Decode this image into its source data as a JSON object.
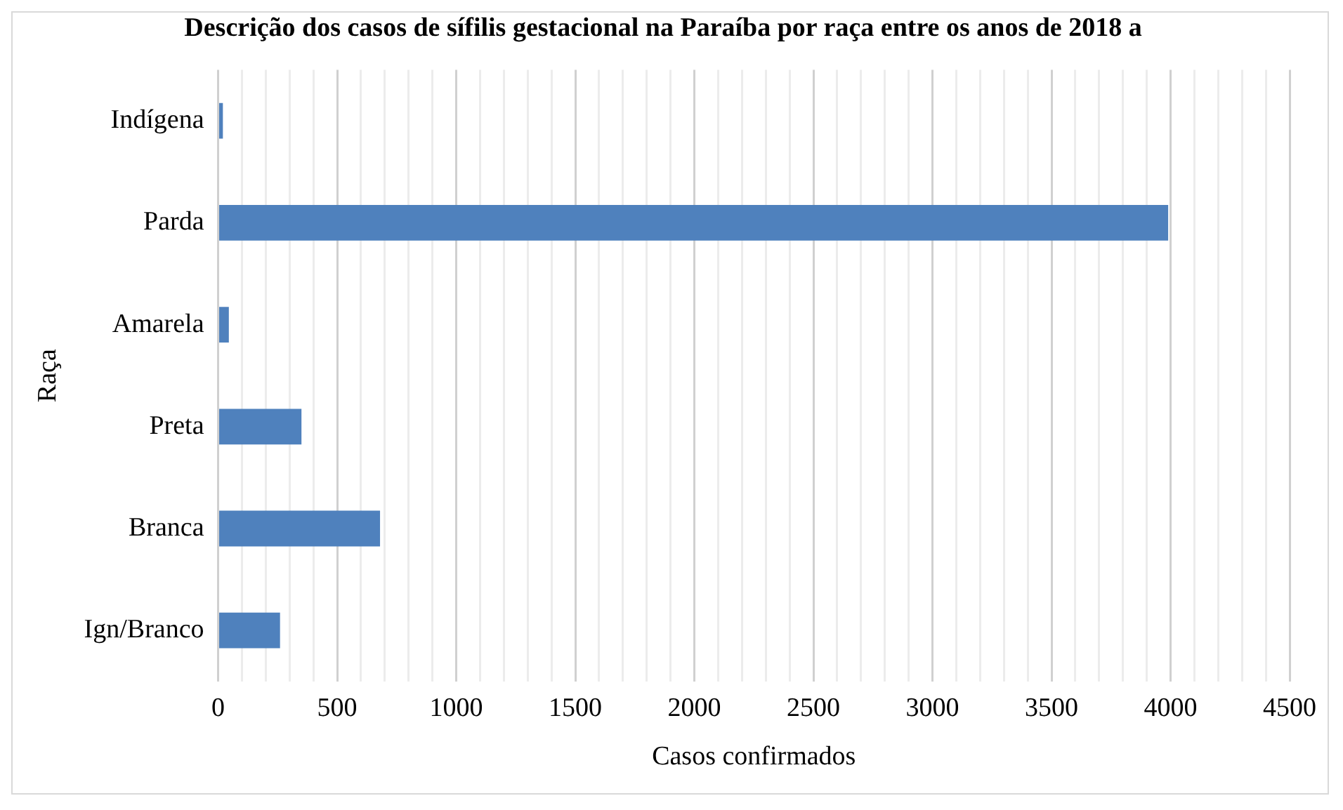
{
  "chart_data": {
    "type": "bar",
    "orientation": "horizontal",
    "title": "Descrição dos casos de sífilis gestacional na Paraíba por raça entre os anos de 2018 a",
    "xlabel": "Casos confirmados",
    "ylabel": "Raça",
    "categories": [
      "Indígena",
      "Parda",
      "Amarela",
      "Preta",
      "Branca",
      "Ign/Branco"
    ],
    "values": [
      20,
      3990,
      45,
      350,
      680,
      260
    ],
    "color": "#4f81bd",
    "xlim": [
      0,
      4500
    ],
    "xticks": [
      0,
      {
        "value": 100,
        "label": null
      },
      {
        "value": 200,
        "label": null
      },
      {
        "value": 300,
        "label": null
      },
      {
        "value": 400,
        "label": null
      },
      500,
      {
        "value": 600,
        "label": null
      },
      {
        "value": 700,
        "label": null
      },
      {
        "value": 800,
        "label": null
      },
      {
        "value": 900,
        "label": null
      },
      1000,
      {
        "value": 1100,
        "label": null
      },
      {
        "value": 1200,
        "label": null
      },
      {
        "value": 1300,
        "label": null
      },
      {
        "value": 1400,
        "label": null
      },
      1500,
      {
        "value": 1600,
        "label": null
      },
      {
        "value": 1700,
        "label": null
      },
      {
        "value": 1800,
        "label": null
      },
      {
        "value": 1900,
        "label": null
      },
      2000,
      {
        "value": 2100,
        "label": null
      },
      {
        "value": 2200,
        "label": null
      },
      {
        "value": 2300,
        "label": null
      },
      {
        "value": 2400,
        "label": null
      },
      2500,
      {
        "value": 2600,
        "label": null
      },
      {
        "value": 2700,
        "label": null
      },
      {
        "value": 2800,
        "label": null
      },
      {
        "value": 2900,
        "label": null
      },
      3000,
      {
        "value": 3100,
        "label": null
      },
      {
        "value": 3200,
        "label": null
      },
      {
        "value": 3300,
        "label": null
      },
      {
        "value": 3400,
        "label": null
      },
      3500,
      {
        "value": 3600,
        "label": null
      },
      {
        "value": 3700,
        "label": null
      },
      {
        "value": 3800,
        "label": null
      },
      {
        "value": 3900,
        "label": null
      },
      4000,
      {
        "value": 4100,
        "label": null
      },
      {
        "value": 4200,
        "label": null
      },
      {
        "value": 4300,
        "label": null
      },
      {
        "value": 4400,
        "label": null
      },
      4500
    ],
    "grid": "x",
    "legend": false
  }
}
